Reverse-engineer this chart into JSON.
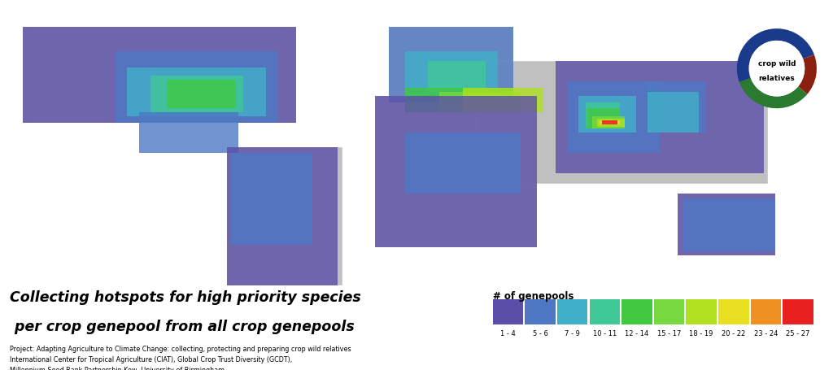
{
  "title_line1": "Collecting hotspots for high priority species",
  "title_line2": " per crop genepool from all crop genepools",
  "project_text": "Project: Adapting Agriculture to Climate Change: collecting, protecting and preparing crop wild relatives",
  "institution_text1": "International Center for Tropical Agriculture (CIAT), Global Crop Trust Diversity (GCDT),",
  "institution_text2": "Millennium Seed Bank Partnership Kew, University of Birmingham",
  "legend_title": "# of genepools",
  "legend_labels": [
    "1 - 4",
    "5 - 6",
    "7 - 9",
    "10 - 11",
    "12 - 14",
    "15 - 17",
    "18 - 19",
    "20 - 22",
    "23 - 24",
    "25 - 27"
  ],
  "legend_colors": [
    "#5b4ea8",
    "#4e78c4",
    "#40b0c8",
    "#40c896",
    "#40c840",
    "#78d840",
    "#b0e020",
    "#e8e020",
    "#f09020",
    "#e82020"
  ],
  "background_color": "#ffffff",
  "ocean_color": "#c8d4e0",
  "land_no_data_color": "#c0c0c0",
  "logo_circle_colors": [
    "#1a3a8c",
    "#2a7a30",
    "#8c2010"
  ],
  "figsize": [
    10.24,
    4.55
  ],
  "dpi": 100
}
